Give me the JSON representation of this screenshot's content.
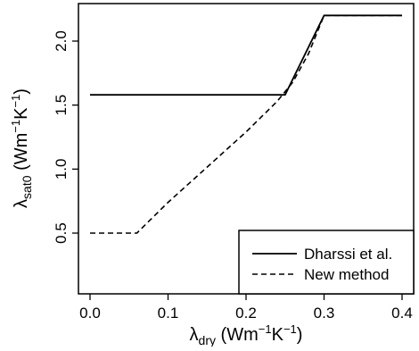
{
  "chart_data": {
    "type": "line",
    "xlim": [
      0.0,
      0.4
    ],
    "ylim": [
      0.0,
      2.2
    ],
    "x_ticks": [
      0.0,
      0.1,
      0.2,
      0.3,
      0.4
    ],
    "x_tick_labels": [
      "0.0",
      "0.1",
      "0.2",
      "0.3",
      "0.4"
    ],
    "y_ticks": [
      0.5,
      1.0,
      1.5,
      2.0
    ],
    "y_tick_labels": [
      "0.5",
      "1.0",
      "1.5",
      "2.0"
    ],
    "xlabel": {
      "base": "λ",
      "sub": "dry",
      "unit_open": " (Wm",
      "sup1": "−1",
      "unit_mid": "K",
      "sup2": "−1",
      "unit_close": ")"
    },
    "ylabel": {
      "base": "λ",
      "sub": "sat0",
      "unit_open": " (Wm",
      "sup1": "−1",
      "unit_mid": "K",
      "sup2": "−1",
      "unit_close": ")"
    },
    "grid": false,
    "legend_position": "bottom-right",
    "series": [
      {
        "name": "Dharssi et al.",
        "style": "solid",
        "color": "#000000",
        "x": [
          0.0,
          0.25,
          0.3,
          0.4
        ],
        "y": [
          1.58,
          1.58,
          2.2,
          2.2
        ]
      },
      {
        "name": "New method",
        "style": "dashed",
        "color": "#000000",
        "x": [
          0.0,
          0.06,
          0.08,
          0.1,
          0.12,
          0.14,
          0.16,
          0.18,
          0.2,
          0.22,
          0.24,
          0.26,
          0.28,
          0.3,
          0.4
        ],
        "y": [
          0.5,
          0.5,
          0.62,
          0.74,
          0.85,
          0.96,
          1.07,
          1.18,
          1.29,
          1.41,
          1.53,
          1.68,
          1.9,
          2.2,
          2.2
        ]
      }
    ]
  }
}
